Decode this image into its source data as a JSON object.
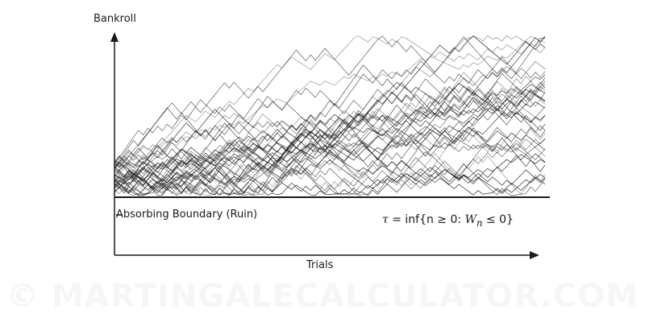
{
  "diagram": {
    "y_axis_label": "Bankroll",
    "x_axis_label": "Trials",
    "boundary_label": "Absorbing Boundary (Ruin)",
    "formula": {
      "tau": "τ",
      "eq": " = inf{n ≥ 0: ",
      "W": "W",
      "sub": "n",
      "leq": " ≤ 0}"
    },
    "watermark": "© MARTINGALECALCULATOR.COM",
    "line_color": "#1a1a1a",
    "path_color": "#222222",
    "path_count": 40
  }
}
